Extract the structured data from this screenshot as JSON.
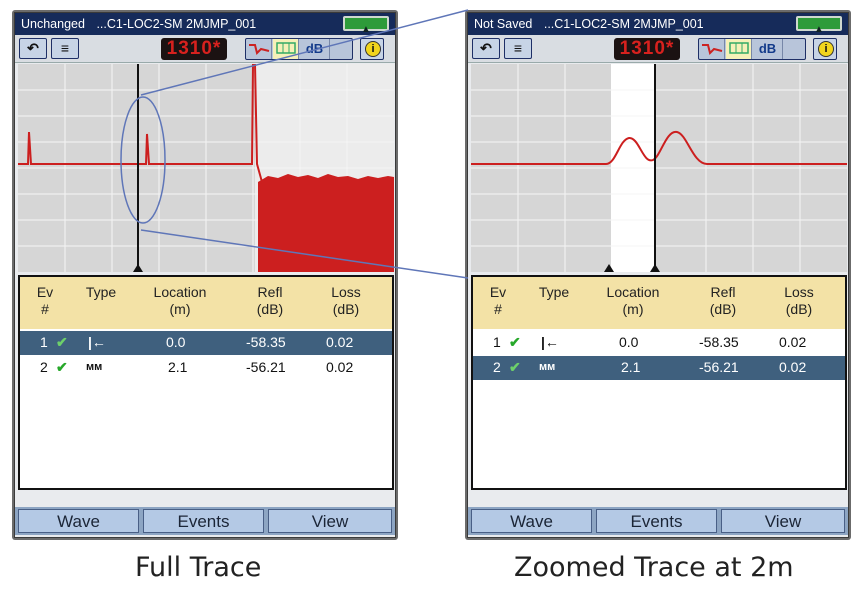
{
  "left_panel": {
    "title_status": "Unchanged",
    "title_file": "...C1-LOC2-SM 2MJMP_001",
    "wavelength": "1310*",
    "mode_buttons": [
      "dB"
    ],
    "table_header": {
      "ev": "Ev\n#",
      "type": "Type",
      "location": "Location\n(m)",
      "refl": "Refl\n(dB)",
      "loss": "Loss\n(dB)"
    },
    "events": [
      {
        "ev": "1",
        "type_icon": "launch-icon",
        "location": "0.0",
        "refl": "-58.35",
        "loss": "0.02",
        "selected": true
      },
      {
        "ev": "2",
        "type_icon": "reflective-event-icon",
        "location": "2.1",
        "refl": "-56.21",
        "loss": "0.02",
        "selected": false
      }
    ],
    "bottom_buttons": [
      "Wave",
      "Events",
      "View"
    ],
    "caption": "Full Trace"
  },
  "right_panel": {
    "title_status": "Not Saved",
    "title_file": "...C1-LOC2-SM 2MJMP_001",
    "wavelength": "1310*",
    "mode_buttons": [
      "dB"
    ],
    "table_header": {
      "ev": "Ev\n#",
      "type": "Type",
      "location": "Location\n(m)",
      "refl": "Refl\n(dB)",
      "loss": "Loss\n(dB)"
    },
    "events": [
      {
        "ev": "1",
        "type_icon": "launch-icon",
        "location": "0.0",
        "refl": "-58.35",
        "loss": "0.02",
        "selected": false
      },
      {
        "ev": "2",
        "type_icon": "reflective-event-icon",
        "location": "2.1",
        "refl": "-56.21",
        "loss": "0.02",
        "selected": true
      }
    ],
    "bottom_buttons": [
      "Wave",
      "Events",
      "View"
    ],
    "caption": "Zoomed Trace at 2m"
  },
  "colors": {
    "title_bar": "#162b5a",
    "trace_line": "#cc1f1f",
    "selected_row": "#3f607e",
    "table_header": "#f3e2a6",
    "check": "#27a82a",
    "zoom_lines": "#5f76b8"
  }
}
